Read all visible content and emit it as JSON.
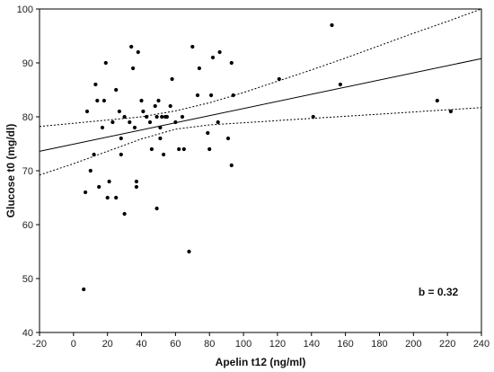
{
  "chart_data": {
    "type": "scatter",
    "xlabel": "Apelin t12 (ng/ml)",
    "ylabel": "Glucose t0 (mg/dl)",
    "xlim": [
      -20,
      240
    ],
    "ylim": [
      40,
      100
    ],
    "xticks": [
      -20,
      0,
      20,
      40,
      60,
      80,
      100,
      120,
      140,
      160,
      180,
      200,
      220,
      240
    ],
    "yticks": [
      40,
      50,
      60,
      70,
      80,
      90,
      100
    ],
    "grid": false,
    "annotation": "b = 0.32",
    "regression_line": {
      "x": [
        -20,
        240
      ],
      "y": [
        73.6,
        90.8
      ]
    },
    "confidence_band": {
      "x": [
        -20,
        0,
        20,
        40,
        60,
        80,
        100,
        120,
        140,
        160,
        180,
        200,
        220,
        240
      ],
      "upper": [
        78.2,
        78.8,
        79.4,
        80.0,
        81.1,
        82.6,
        84.5,
        86.6,
        88.7,
        90.9,
        93.2,
        95.5,
        97.7,
        100.0
      ],
      "lower": [
        69.2,
        71.3,
        73.6,
        75.9,
        77.7,
        78.5,
        78.9,
        79.3,
        79.7,
        80.1,
        80.5,
        80.9,
        81.3,
        81.7
      ]
    },
    "points": [
      {
        "x": 6,
        "y": 48
      },
      {
        "x": 7,
        "y": 66
      },
      {
        "x": 8,
        "y": 81
      },
      {
        "x": 10,
        "y": 70
      },
      {
        "x": 12,
        "y": 73
      },
      {
        "x": 13,
        "y": 86
      },
      {
        "x": 14,
        "y": 83
      },
      {
        "x": 15,
        "y": 67
      },
      {
        "x": 17,
        "y": 78
      },
      {
        "x": 18,
        "y": 83
      },
      {
        "x": 19,
        "y": 90
      },
      {
        "x": 20,
        "y": 65
      },
      {
        "x": 21,
        "y": 68
      },
      {
        "x": 23,
        "y": 79
      },
      {
        "x": 25,
        "y": 85
      },
      {
        "x": 25,
        "y": 65
      },
      {
        "x": 27,
        "y": 81
      },
      {
        "x": 28,
        "y": 76
      },
      {
        "x": 28,
        "y": 73
      },
      {
        "x": 30,
        "y": 80
      },
      {
        "x": 30,
        "y": 62
      },
      {
        "x": 33,
        "y": 79
      },
      {
        "x": 34,
        "y": 93
      },
      {
        "x": 35,
        "y": 89
      },
      {
        "x": 36,
        "y": 78
      },
      {
        "x": 37,
        "y": 68
      },
      {
        "x": 37,
        "y": 67
      },
      {
        "x": 38,
        "y": 92
      },
      {
        "x": 40,
        "y": 83
      },
      {
        "x": 41,
        "y": 81
      },
      {
        "x": 43,
        "y": 80
      },
      {
        "x": 45,
        "y": 79
      },
      {
        "x": 46,
        "y": 74
      },
      {
        "x": 48,
        "y": 82
      },
      {
        "x": 49,
        "y": 63
      },
      {
        "x": 49,
        "y": 80
      },
      {
        "x": 50,
        "y": 83
      },
      {
        "x": 51,
        "y": 78
      },
      {
        "x": 51,
        "y": 76
      },
      {
        "x": 52,
        "y": 80
      },
      {
        "x": 53,
        "y": 73
      },
      {
        "x": 54,
        "y": 80
      },
      {
        "x": 55,
        "y": 80
      },
      {
        "x": 57,
        "y": 82
      },
      {
        "x": 58,
        "y": 87
      },
      {
        "x": 60,
        "y": 79
      },
      {
        "x": 62,
        "y": 74
      },
      {
        "x": 64,
        "y": 80
      },
      {
        "x": 65,
        "y": 74
      },
      {
        "x": 68,
        "y": 55
      },
      {
        "x": 70,
        "y": 93
      },
      {
        "x": 73,
        "y": 84
      },
      {
        "x": 74,
        "y": 89
      },
      {
        "x": 79,
        "y": 77
      },
      {
        "x": 80,
        "y": 74
      },
      {
        "x": 81,
        "y": 84
      },
      {
        "x": 82,
        "y": 91
      },
      {
        "x": 85,
        "y": 79
      },
      {
        "x": 86,
        "y": 92
      },
      {
        "x": 91,
        "y": 76
      },
      {
        "x": 93,
        "y": 71
      },
      {
        "x": 93,
        "y": 90
      },
      {
        "x": 94,
        "y": 84
      },
      {
        "x": 121,
        "y": 87
      },
      {
        "x": 141,
        "y": 80
      },
      {
        "x": 152,
        "y": 97
      },
      {
        "x": 157,
        "y": 86
      },
      {
        "x": 214,
        "y": 83
      },
      {
        "x": 222,
        "y": 81
      }
    ]
  }
}
